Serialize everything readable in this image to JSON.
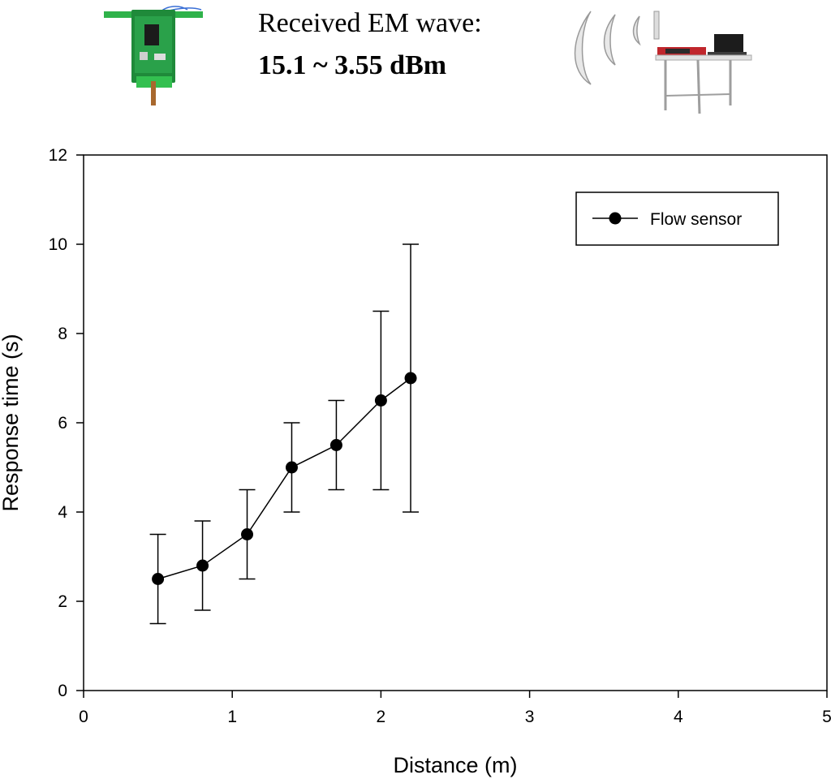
{
  "header": {
    "caption_line1": "Received EM wave:",
    "caption_line2": "15.1 ~ 3.55 dBm"
  },
  "chart_data": {
    "type": "line",
    "xlabel": "Distance (m)",
    "ylabel": "Response time (s)",
    "xlim": [
      0,
      5
    ],
    "ylim": [
      0,
      12
    ],
    "xticks": [
      "0",
      "1",
      "2",
      "3",
      "4",
      "5"
    ],
    "yticks": [
      "0",
      "2",
      "4",
      "6",
      "8",
      "10",
      "12"
    ],
    "legend_position": "top-right",
    "grid": false,
    "series": [
      {
        "name": "Flow sensor",
        "color": "#000000",
        "marker": "filled-circle",
        "x": [
          0.5,
          0.8,
          1.1,
          1.4,
          1.7,
          2.0,
          2.2
        ],
        "y": [
          2.5,
          2.8,
          3.5,
          5.0,
          5.5,
          6.5,
          7.0
        ],
        "error_low": [
          1.5,
          1.8,
          2.5,
          4.0,
          4.5,
          4.5,
          4.0
        ],
        "error_high": [
          3.5,
          3.8,
          4.5,
          6.0,
          6.5,
          8.5,
          10.0
        ]
      }
    ]
  }
}
